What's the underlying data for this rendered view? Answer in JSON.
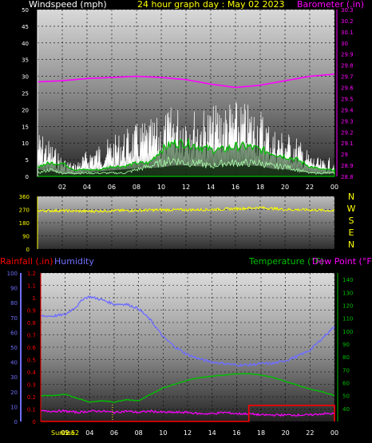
{
  "header": {
    "windspeed_label": "Windspeed (mph)",
    "title": "24 hour graph day : May 02 2023",
    "barometer_label": "Barometer (.in)"
  },
  "colors": {
    "windspeed_label": "#ffffff",
    "title": "#ffff00",
    "barometer": "#ff00ff",
    "wind_dir": "#ffff00",
    "humidity": "#6f6fff",
    "temperature": "#00c000",
    "dewpoint": "#ff00ff",
    "rainfall": "#ff0000",
    "sunrise": "#ffff00"
  },
  "chart_data": [
    {
      "type": "line",
      "name": "wind-barometer",
      "xlabel": "",
      "x_ticks": [
        "02",
        "04",
        "06",
        "08",
        "10",
        "12",
        "14",
        "16",
        "18",
        "20",
        "22",
        "00"
      ],
      "y_left_ticks": [
        "0",
        "5",
        "10",
        "15",
        "20",
        "25",
        "30",
        "35",
        "40",
        "45",
        "50"
      ],
      "y_left_range": [
        0,
        50
      ],
      "y_right_ticks": [
        "28.8",
        "28.9",
        "29",
        "29.1",
        "29.2",
        "29.3",
        "29.4",
        "29.5",
        "29.6",
        "29.7",
        "29.8",
        "29.9",
        "30",
        "30.1",
        "30.2",
        "30.3"
      ],
      "y_right_range": [
        28.8,
        30.3
      ],
      "grid": true,
      "series": [
        {
          "axis": "right",
          "hours": [
            0,
            2,
            4,
            6,
            8,
            10,
            12,
            14,
            16,
            18,
            20,
            22,
            24
          ],
          "values": [
            29.65,
            29.66,
            29.68,
            29.69,
            29.7,
            29.69,
            29.67,
            29.63,
            29.6,
            29.62,
            29.66,
            29.7,
            29.72
          ]
        },
        {
          "axis": "left",
          "hours": [
            0,
            1,
            2,
            3,
            4,
            5,
            6,
            7,
            8,
            9,
            10,
            11,
            12,
            13,
            14,
            15,
            16,
            17,
            18,
            19,
            20,
            21,
            22,
            23,
            24
          ],
          "values": [
            14,
            11,
            6,
            4,
            8,
            10,
            12,
            14,
            16,
            17,
            18,
            22,
            22,
            20,
            21,
            23,
            23,
            22,
            21,
            15,
            14,
            12,
            7,
            5,
            6
          ]
        },
        {
          "axis": "left",
          "hours": [
            0,
            1,
            2,
            3,
            4,
            5,
            6,
            7,
            8,
            9,
            10,
            11,
            12,
            13,
            14,
            15,
            16,
            17,
            18,
            19,
            20,
            21,
            22,
            23,
            24
          ],
          "values": [
            3,
            4,
            4,
            2,
            2,
            2,
            3,
            3,
            4,
            4,
            8,
            10,
            10,
            9,
            8,
            8,
            9,
            9,
            8,
            7,
            6,
            5,
            3,
            2,
            2
          ]
        },
        {
          "axis": "left",
          "hours": [
            0,
            1,
            2,
            3,
            4,
            5,
            6,
            7,
            8,
            9,
            10,
            11,
            12,
            13,
            14,
            15,
            16,
            17,
            18,
            19,
            20,
            21,
            22,
            23,
            24
          ],
          "values": [
            1,
            2,
            1,
            1,
            1,
            1,
            1,
            1,
            2,
            3,
            4,
            5,
            4,
            4,
            3,
            4,
            4,
            4,
            4,
            3,
            3,
            2,
            1,
            1,
            1
          ]
        }
      ]
    },
    {
      "type": "line",
      "name": "wind-direction",
      "y_ticks": [
        "360",
        "270",
        "180",
        "90",
        "0"
      ],
      "y_range": [
        0,
        360
      ],
      "compass": [
        "N",
        "W",
        "S",
        "E",
        "N"
      ],
      "series": [
        {
          "hours": [
            0,
            2,
            4,
            6,
            8,
            10,
            12,
            14,
            16,
            18,
            20,
            22,
            24
          ],
          "values": [
            262,
            262,
            258,
            262,
            264,
            268,
            268,
            270,
            275,
            283,
            270,
            268,
            262
          ]
        }
      ]
    },
    {
      "type": "line",
      "name": "rain-humidity-temperature",
      "header": {
        "rainfall_label": "Rainfall (.in)",
        "humidity_label": "Humidity",
        "temperature_label": "Temperature (°F)",
        "dewpoint_label": "Dew Point (°F)"
      },
      "x_ticks": [
        "02",
        "04",
        "06",
        "08",
        "10",
        "12",
        "14",
        "16",
        "18",
        "20",
        "22",
        "00"
      ],
      "sunrise_label": "Sunrise",
      "sunrise_time_label": "05:52",
      "humidity_ticks": [
        "0",
        "10",
        "20",
        "30",
        "40",
        "50",
        "60",
        "70",
        "80",
        "90",
        "100"
      ],
      "humidity_range": [
        0,
        100
      ],
      "rainfall_ticks": [
        "0",
        "0.1",
        "0.2",
        "0.3",
        "0.4",
        "0.5",
        "0.6",
        "0.7",
        "0.8",
        "0.9",
        "1",
        "1.1",
        "1.2"
      ],
      "rainfall_range": [
        0,
        1.2
      ],
      "temperature_ticks": [
        "40",
        "50",
        "60",
        "70",
        "80",
        "90",
        "100",
        "110",
        "120",
        "130",
        "140"
      ],
      "temperature_range": [
        30,
        145
      ],
      "series": [
        {
          "key": "humidity",
          "hours": [
            0,
            1,
            2,
            3,
            3.5,
            4,
            5,
            6,
            7,
            8,
            9,
            10,
            11,
            12,
            13,
            14,
            15,
            16,
            17,
            18,
            19,
            20,
            21,
            22,
            23,
            24
          ],
          "values": [
            71,
            71,
            72,
            78,
            83,
            84,
            82,
            79,
            79,
            76,
            68,
            57,
            50,
            45,
            42,
            40,
            39,
            38,
            38,
            39,
            39,
            41,
            44,
            48,
            56,
            64
          ]
        },
        {
          "key": "temperature",
          "hours": [
            0,
            1,
            2,
            3,
            4,
            5,
            6,
            7,
            8,
            9,
            10,
            11,
            12,
            13,
            14,
            15,
            16,
            17,
            18,
            19,
            20,
            21,
            22,
            23,
            24
          ],
          "values": [
            50,
            50,
            51,
            48,
            45,
            46,
            45,
            47,
            46,
            51,
            56,
            59,
            62,
            64,
            65,
            66,
            67,
            67,
            66,
            64,
            61,
            58,
            55,
            53,
            50
          ]
        },
        {
          "key": "dewpoint",
          "hours": [
            0,
            1,
            2,
            3,
            4,
            5,
            6,
            7,
            8,
            9,
            10,
            11,
            12,
            13,
            14,
            15,
            16,
            17,
            18,
            19,
            20,
            21,
            22,
            23,
            24
          ],
          "values": [
            38,
            38,
            38,
            37,
            38,
            38,
            37,
            38,
            37,
            38,
            37,
            37,
            37,
            36,
            36,
            37,
            36,
            36,
            35,
            35,
            35,
            35,
            35,
            36,
            36
          ]
        },
        {
          "key": "rainfall",
          "hours": [
            0,
            17.0,
            17.0,
            24,
            24
          ],
          "values": [
            0,
            0,
            0.13,
            0.13,
            0
          ]
        }
      ]
    }
  ]
}
